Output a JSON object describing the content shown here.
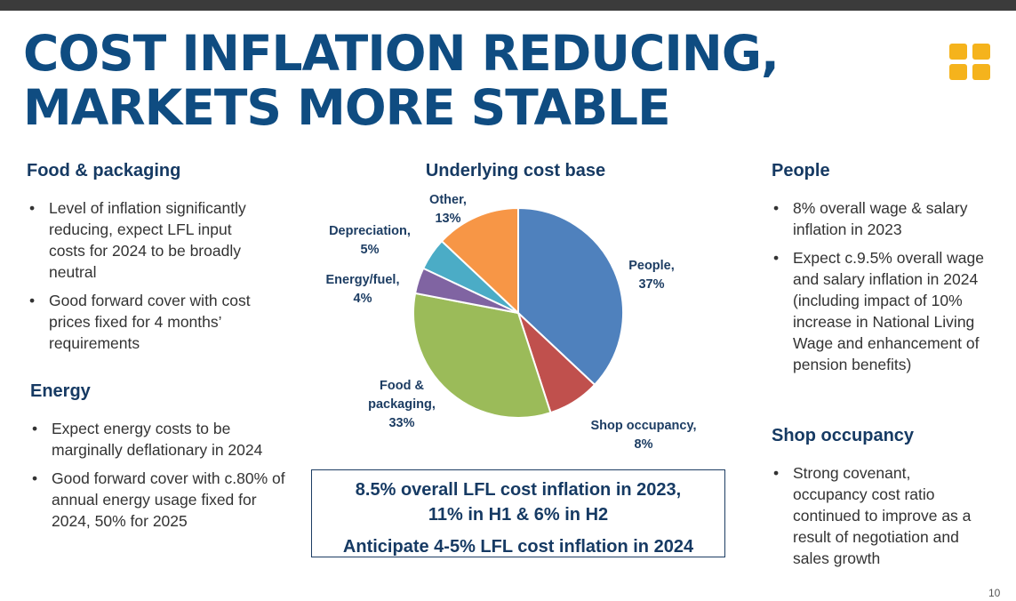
{
  "title": {
    "line1": "COST INFLATION REDUCING,",
    "line2": "MARKETS MORE STABLE"
  },
  "colors": {
    "title": "#0f4c81",
    "heading": "#163a63",
    "accent": "#f5b31c"
  },
  "logo_icon": "four-squares-logo",
  "food_packaging": {
    "heading": "Food & packaging",
    "bullets": [
      "Level of inflation significantly reducing, expect LFL input costs for 2024 to be broadly neutral",
      "Good forward cover with cost prices fixed for 4 months’ requirements"
    ]
  },
  "energy": {
    "heading": "Energy",
    "bullets": [
      "Expect energy costs to be marginally deflationary in 2024",
      "Good forward cover with c.80% of annual energy usage fixed for 2024, 50% for 2025"
    ]
  },
  "people": {
    "heading": "People",
    "bullets": [
      "8% overall wage & salary inflation in 2023",
      "Expect c.9.5% overall wage and salary inflation in 2024 (including impact of 10% increase in National Living Wage and enhancement of pension benefits)"
    ]
  },
  "shop_occupancy": {
    "heading": "Shop occupancy",
    "bullets": [
      "Strong covenant, occupancy cost ratio continued to improve as a result of negotiation and sales growth"
    ]
  },
  "summary_box": {
    "line1": "8.5% overall LFL cost inflation in 2023,",
    "line2": "11% in H1 & 6% in H2",
    "line3": "Anticipate 4-5% LFL cost inflation in 2024"
  },
  "page_number": "10",
  "chart_data": {
    "type": "pie",
    "title": "Underlying cost base",
    "start": "12 o'clock",
    "direction": "clockwise",
    "slices": [
      {
        "name": "People",
        "value": 37,
        "label_lines": [
          "People,",
          "37%"
        ],
        "color": "#4f81bd"
      },
      {
        "name": "Shop occupancy",
        "value": 8,
        "label_lines": [
          "Shop occupancy,",
          "8%"
        ],
        "color": "#c0504d"
      },
      {
        "name": "Food & packaging",
        "value": 33,
        "label_lines": [
          "Food &",
          "packaging,",
          "33%"
        ],
        "color": "#9bbb59"
      },
      {
        "name": "Energy/fuel",
        "value": 4,
        "label_lines": [
          "Energy/fuel,",
          "4%"
        ],
        "color": "#8064a2"
      },
      {
        "name": "Depreciation",
        "value": 5,
        "label_lines": [
          "Depreciation,",
          "5%"
        ],
        "color": "#4bacc6"
      },
      {
        "name": "Other",
        "value": 13,
        "label_lines": [
          "Other,",
          "13%"
        ],
        "color": "#f79646"
      }
    ]
  }
}
